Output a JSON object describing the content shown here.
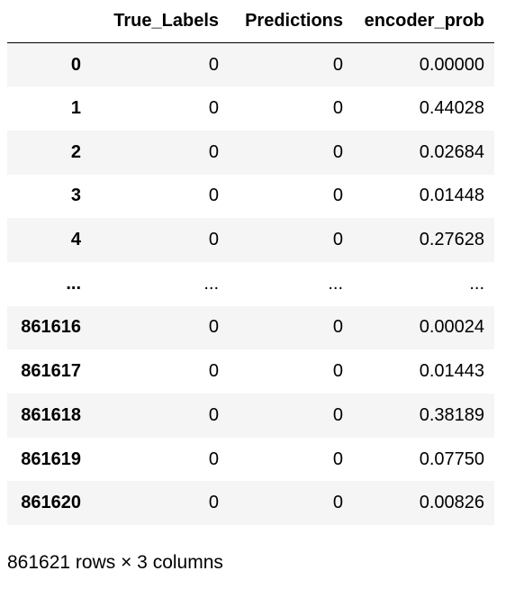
{
  "table": {
    "columns": [
      "True_Labels",
      "Predictions",
      "encoder_prob"
    ],
    "rows": [
      {
        "index": "0",
        "cells": [
          "0",
          "0",
          "0.00000"
        ]
      },
      {
        "index": "1",
        "cells": [
          "0",
          "0",
          "0.44028"
        ]
      },
      {
        "index": "2",
        "cells": [
          "0",
          "0",
          "0.02684"
        ]
      },
      {
        "index": "3",
        "cells": [
          "0",
          "0",
          "0.01448"
        ]
      },
      {
        "index": "4",
        "cells": [
          "0",
          "0",
          "0.27628"
        ]
      },
      {
        "index": "...",
        "cells": [
          "...",
          "...",
          "..."
        ]
      },
      {
        "index": "861616",
        "cells": [
          "0",
          "0",
          "0.00024"
        ]
      },
      {
        "index": "861617",
        "cells": [
          "0",
          "0",
          "0.01443"
        ]
      },
      {
        "index": "861618",
        "cells": [
          "0",
          "0",
          "0.38189"
        ]
      },
      {
        "index": "861619",
        "cells": [
          "0",
          "0",
          "0.07750"
        ]
      },
      {
        "index": "861620",
        "cells": [
          "0",
          "0",
          "0.00826"
        ]
      }
    ]
  },
  "footer": {
    "shape_text": "861621 rows × 3 columns"
  },
  "colors": {
    "stripe": "#f5f5f5",
    "background": "#ffffff",
    "text": "#000000"
  }
}
